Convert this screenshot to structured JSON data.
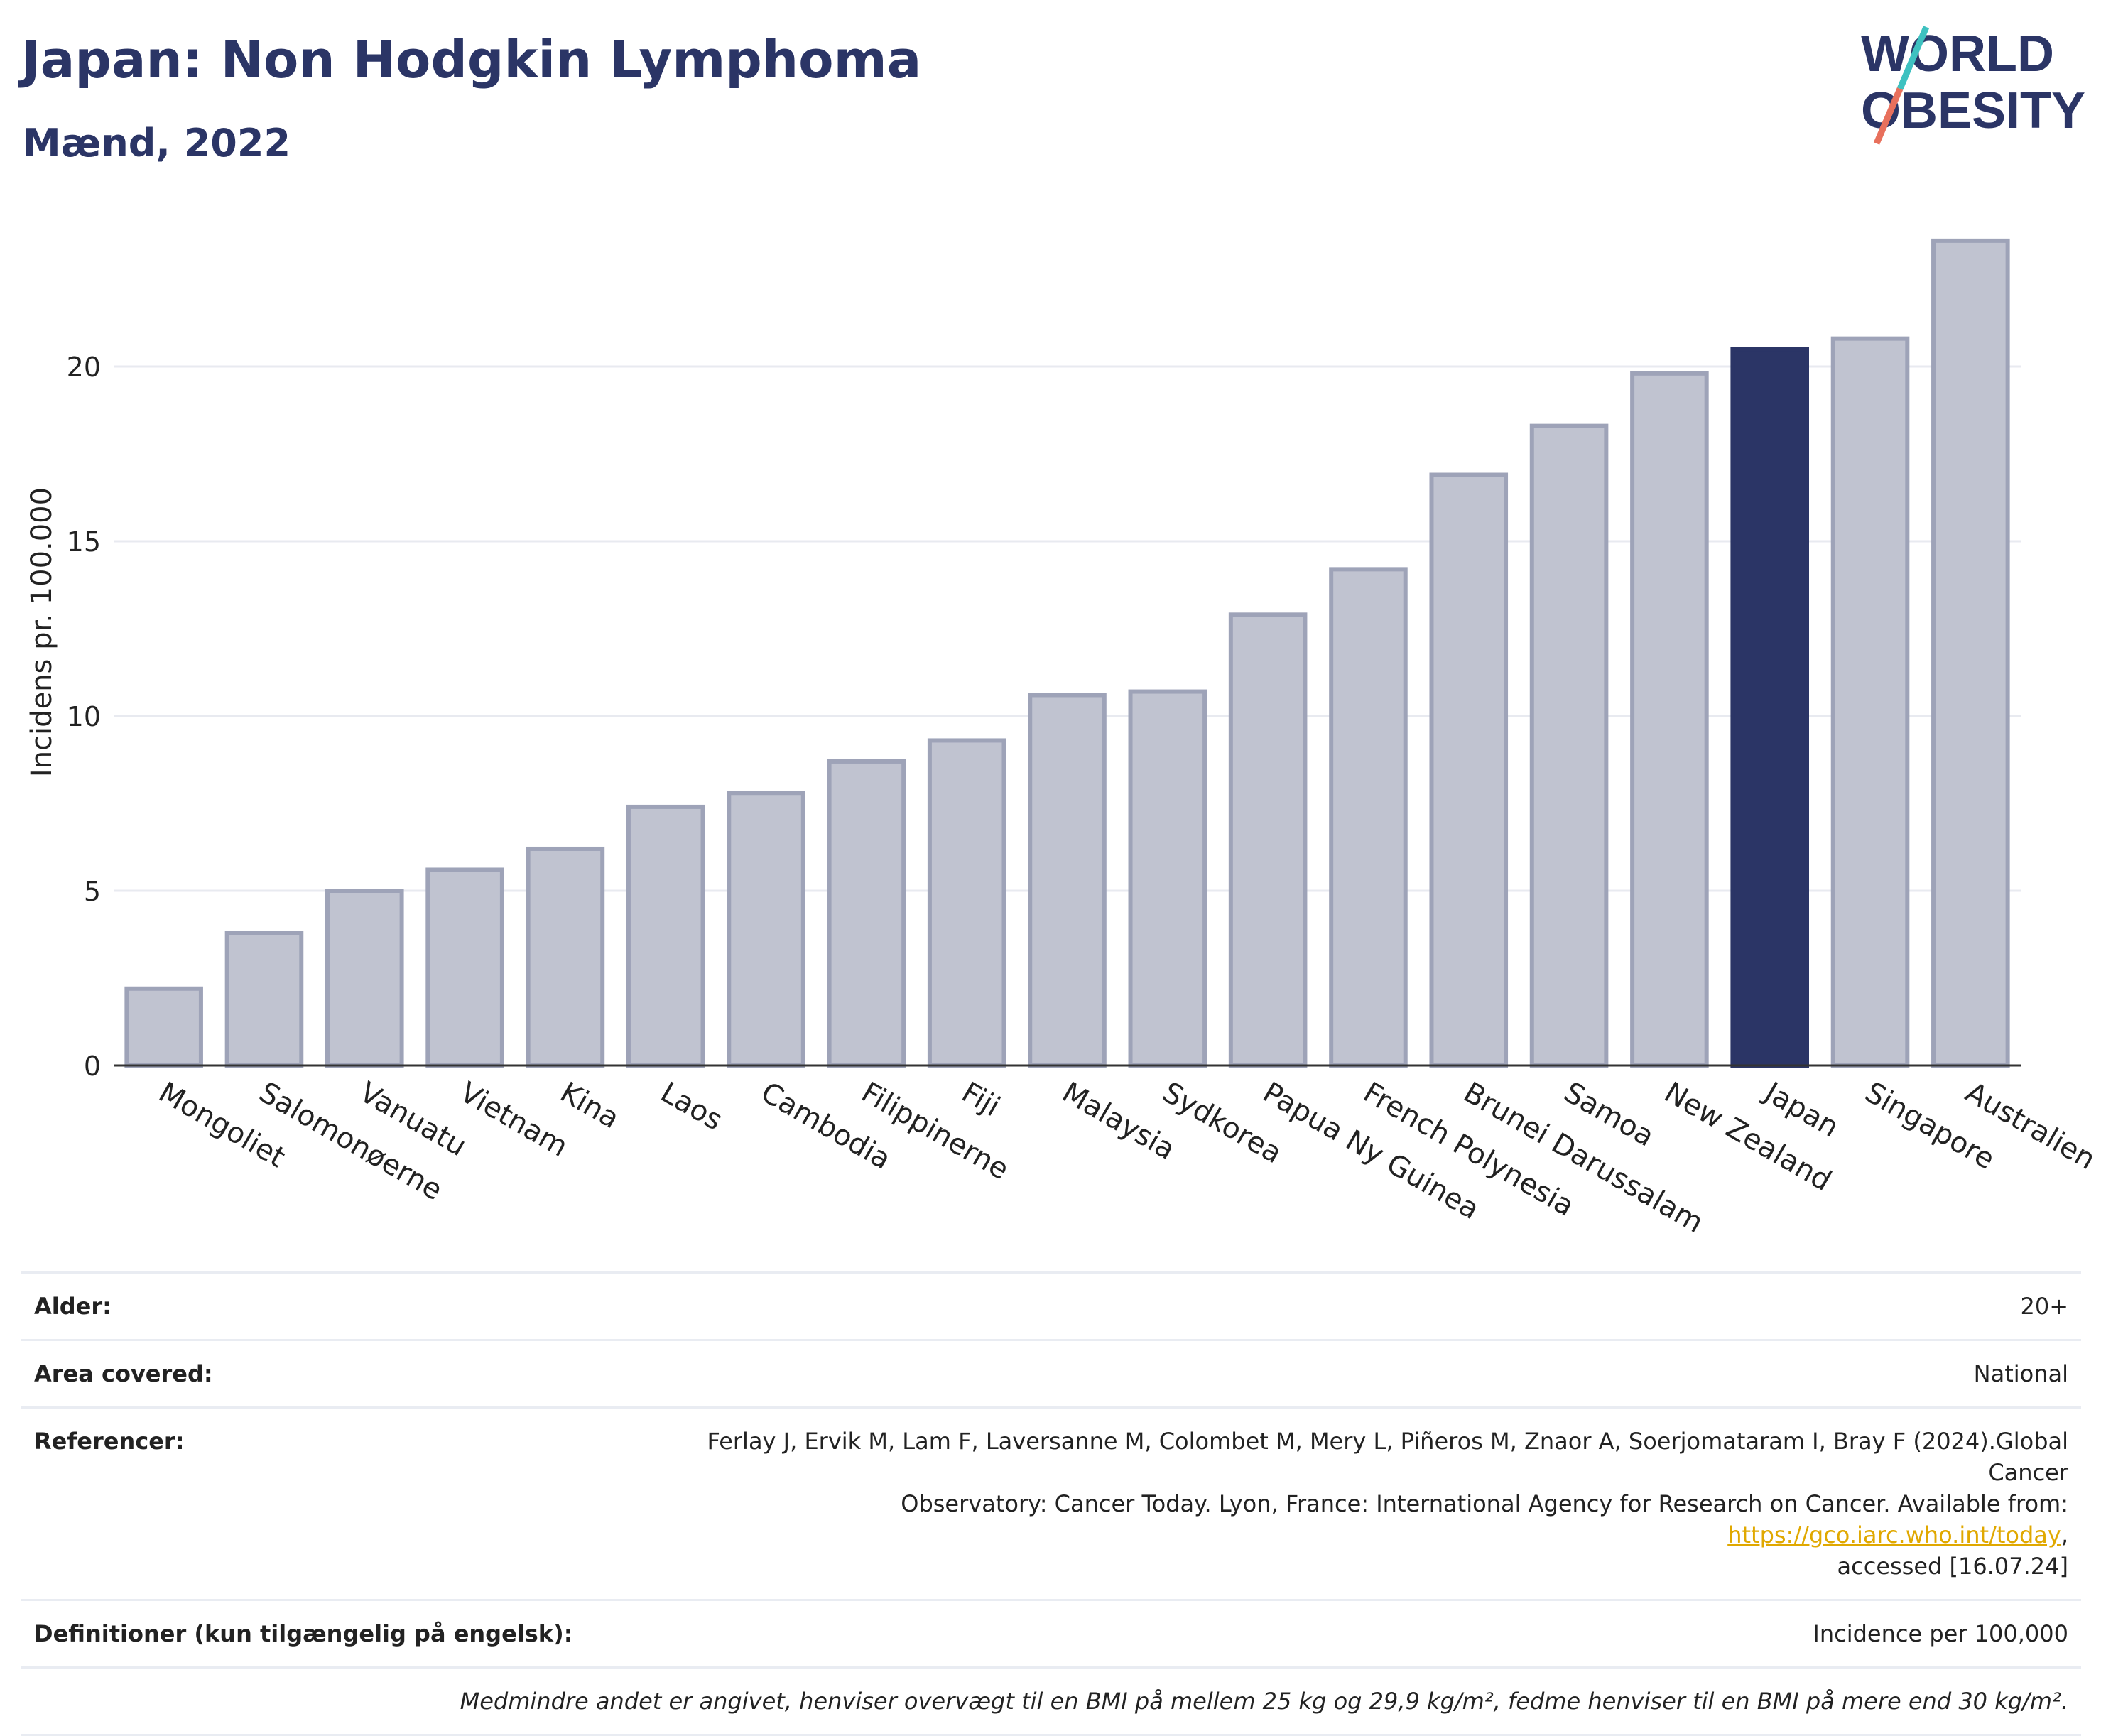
{
  "header": {
    "title": "Japan: Non Hodgkin Lymphoma",
    "subtitle": "Mænd, 2022",
    "logo_line1": "WORLD",
    "logo_line2": "OBESITY"
  },
  "colors": {
    "title": "#2b3566",
    "bar": "#c0c3d0",
    "bar_stroke": "#9ea3b8",
    "highlight": "#2b3566"
  },
  "chart_data": {
    "type": "bar",
    "title": "Japan: Non Hodgkin Lymphoma",
    "subtitle": "Mænd, 2022",
    "ylabel": "Incidens pr. 100.000",
    "xlabel": "",
    "ylim": [
      0,
      25
    ],
    "yticks": [
      0,
      5,
      10,
      15,
      20
    ],
    "grid": true,
    "highlight": "Japan",
    "categories": [
      "Mongoliet",
      "Salomonøerne",
      "Vanuatu",
      "Vietnam",
      "Kina",
      "Laos",
      "Cambodia",
      "Filippinerne",
      "Fiji",
      "Malaysia",
      "Sydkorea",
      "Papua Ny Guinea",
      "French Polynesia",
      "Brunei Darussalam",
      "Samoa",
      "New Zealand",
      "Japan",
      "Singapore",
      "Australien"
    ],
    "values": [
      2.2,
      3.8,
      5.0,
      5.6,
      6.2,
      7.4,
      7.8,
      8.7,
      9.3,
      10.6,
      10.7,
      12.9,
      14.2,
      16.9,
      18.3,
      19.8,
      20.5,
      20.8,
      23.6
    ]
  },
  "info": {
    "age_label": "Alder:",
    "age_value": "20+",
    "area_label": "Area covered:",
    "area_value": "National",
    "ref_label": "Referencer:",
    "ref_text1": "Ferlay J, Ervik M, Lam F, Laversanne M, Colombet M, Mery L, Piñeros M, Znaor A, Soerjomataram I, Bray F (2024).Global Cancer",
    "ref_text2": "Observatory: Cancer Today. Lyon, France: International Agency for Research on Cancer. Available from: ",
    "ref_link": "https://gco.iarc.who.int/today",
    "ref_text3": ",",
    "ref_text4": "accessed [16.07.24]",
    "def_label": "Definitioner (kun tilgængelig på engelsk):",
    "def_value": "Incidence per 100,000",
    "note": "Medmindre andet er angivet, henviser overvægt til en BMI på mellem 25 kg og 29,9 kg/m², fedme henviser til en BMI på mere end 30 kg/m²."
  }
}
